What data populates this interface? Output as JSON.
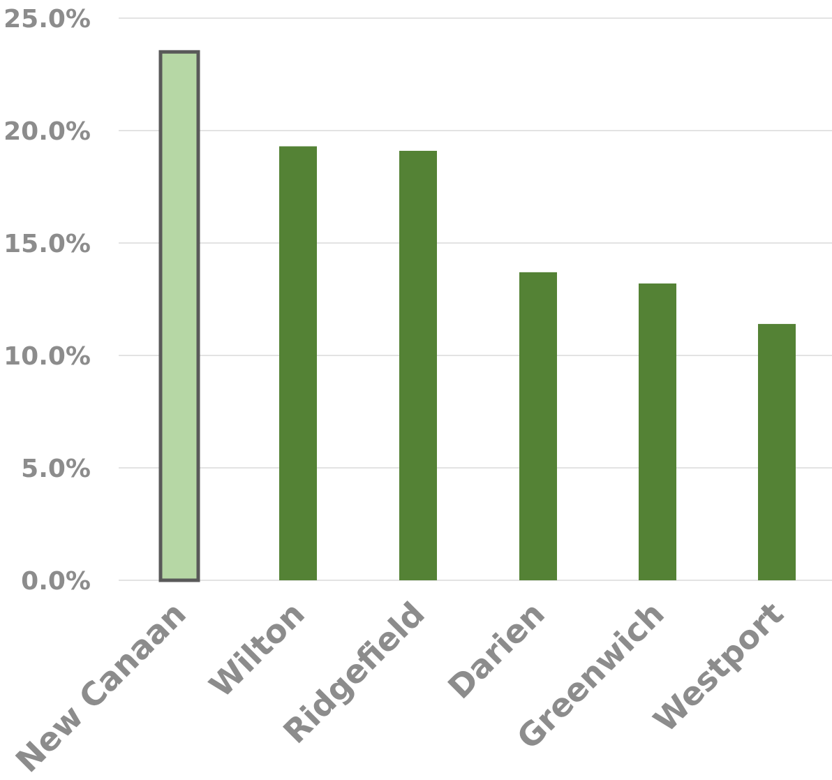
{
  "chart_data": {
    "type": "bar",
    "title": "",
    "xlabel": "",
    "ylabel": "",
    "categories": [
      "New Canaan",
      "Wilton",
      "Ridgefield",
      "Darien",
      "Greenwich",
      "Westport"
    ],
    "values": [
      23.5,
      19.3,
      19.1,
      13.7,
      13.2,
      11.4
    ],
    "ylim": [
      0,
      25
    ],
    "y_ticks": [
      0,
      5,
      10,
      15,
      20,
      25
    ],
    "y_tick_labels": [
      "0.0%",
      "5.0%",
      "10.0%",
      "15.0%",
      "20.0%",
      "25.0%"
    ],
    "grid": true,
    "legend": "none",
    "highlighted_category": "New Canaan",
    "colors": {
      "bar": "#548235",
      "highlight_bar": "#b6d7a5",
      "highlight_border": "#595959",
      "gridline": "#e3e3e3",
      "text": "#8c8c8c"
    }
  }
}
